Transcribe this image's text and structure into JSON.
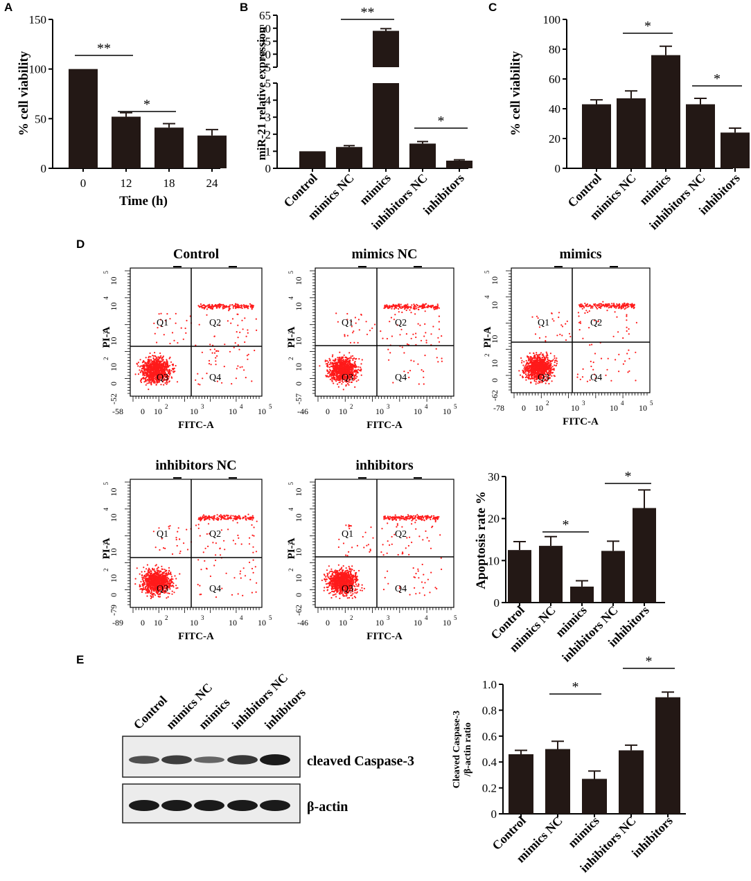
{
  "panels": {
    "A": "A",
    "B": "B",
    "C": "C",
    "D": "D",
    "E": "E"
  },
  "colors": {
    "bar": "#231815",
    "dot": "#ff1a1a",
    "blot": "#1a1a1a"
  },
  "chart_data": [
    {
      "id": "A",
      "type": "bar",
      "categories": [
        "0",
        "12",
        "18",
        "24"
      ],
      "values": [
        100,
        52,
        41,
        33
      ],
      "errors": [
        0,
        4,
        4,
        6
      ],
      "ylabel": "% cell viability",
      "xlabel": "Time (h)",
      "ylim": [
        0,
        150
      ],
      "yticks": [
        "0",
        "50",
        "100",
        "150"
      ],
      "sig": [
        {
          "label": "**",
          "from": 0,
          "to": 1
        },
        {
          "label": "*",
          "from": 1,
          "to": 2
        }
      ]
    },
    {
      "id": "B",
      "type": "bar",
      "categories": [
        "Control",
        "mimics NC",
        "mimics",
        "inhibitors NC",
        "inhibitors"
      ],
      "values": [
        1.0,
        1.25,
        47,
        1.45,
        0.45
      ],
      "errors": [
        0,
        0.08,
        2.5,
        0.12,
        0.05
      ],
      "ylabel": "miR-21 relative expression",
      "ylim_lower": [
        0,
        5
      ],
      "ylim_upper": [
        5,
        65
      ],
      "yticks_lower": [
        "0",
        "1",
        "2",
        "3",
        "4",
        "5"
      ],
      "yticks_upper": [
        "5",
        "20",
        "35",
        "50",
        "65"
      ],
      "sig": [
        {
          "label": "**",
          "from": 1,
          "to": 2
        },
        {
          "label": "*",
          "from": 3,
          "to": 4
        }
      ]
    },
    {
      "id": "C",
      "type": "bar",
      "categories": [
        "Control",
        "mimics NC",
        "mimics",
        "inhibitors NC",
        "inhibitors"
      ],
      "values": [
        43,
        47,
        76,
        43,
        24
      ],
      "errors": [
        3,
        5,
        6,
        4,
        3
      ],
      "ylabel": "% cell viability",
      "ylim": [
        0,
        100
      ],
      "yticks": [
        "0",
        "20",
        "40",
        "60",
        "80",
        "100"
      ],
      "sig": [
        {
          "label": "*",
          "from": 1,
          "to": 2
        },
        {
          "label": "*",
          "from": 3,
          "to": 4
        }
      ]
    },
    {
      "id": "D",
      "type": "bar",
      "categories": [
        "Control",
        "mimics NC",
        "mimics",
        "inhibitors NC",
        "inhibitors"
      ],
      "values": [
        12.5,
        13.5,
        3.8,
        12.3,
        22.5
      ],
      "errors": [
        2,
        2.2,
        1.4,
        2.3,
        4.3
      ],
      "ylabel": "Apoptosis rate %",
      "ylim": [
        0,
        30
      ],
      "yticks": [
        "0",
        "10",
        "20",
        "30"
      ],
      "sig": [
        {
          "label": "*",
          "from": 1,
          "to": 2
        },
        {
          "label": "*",
          "from": 3,
          "to": 4
        }
      ]
    },
    {
      "id": "E",
      "type": "bar",
      "categories": [
        "Control",
        "mimics NC",
        "mimics",
        "inhibitors NC",
        "inhibitors"
      ],
      "values": [
        0.46,
        0.5,
        0.27,
        0.49,
        0.9
      ],
      "errors": [
        0.03,
        0.06,
        0.06,
        0.04,
        0.04
      ],
      "ylabel": "Cleaved Caspase-3 / β-actin ratio",
      "ylabel_lines": [
        "Cleaved Caspase-3",
        "/β-actin ratio"
      ],
      "ylim": [
        0,
        1.0
      ],
      "yticks": [
        "0",
        "0.2",
        "0.4",
        "0.6",
        "0.8",
        "1.0"
      ],
      "sig": [
        {
          "label": "*",
          "from": 1,
          "to": 2
        },
        {
          "label": "*",
          "from": 3,
          "to": 4
        }
      ]
    }
  ],
  "flow": {
    "plots": [
      {
        "title": "Control",
        "ymin": "-52",
        "xmin": "-58"
      },
      {
        "title": "mimics NC",
        "ymin": "-57",
        "xmin": "-46"
      },
      {
        "title": "mimics",
        "ymin": "-62",
        "xmin": "-78"
      },
      {
        "title": "inhibitors NC",
        "ymin": "-79",
        "xmin": "-89"
      },
      {
        "title": "inhibitors",
        "ymin": "-62",
        "xmin": "-46"
      }
    ],
    "xlabel": "FITC-A",
    "ylabel": "PI-A",
    "quadrants": [
      "Q1",
      "Q2",
      "Q3",
      "Q4"
    ],
    "xticks": [
      "0",
      "10",
      "10",
      "10",
      "10"
    ],
    "xexp": [
      "",
      "2",
      "3",
      "4",
      "5"
    ],
    "yticks": [
      "0",
      "10",
      "10",
      "10",
      "10"
    ],
    "yexp": [
      "",
      "2",
      "3",
      "4",
      "5"
    ]
  },
  "western": {
    "lanes": [
      "Control",
      "mimics NC",
      "mimics",
      "inhibitors NC",
      "inhibitors"
    ],
    "rows": [
      "cleaved Caspase-3",
      "β-actin"
    ],
    "caspase_intensity": [
      0.55,
      0.7,
      0.35,
      0.75,
      1.0
    ],
    "actin_intensity": [
      1.0,
      1.0,
      1.0,
      1.0,
      1.0
    ]
  }
}
